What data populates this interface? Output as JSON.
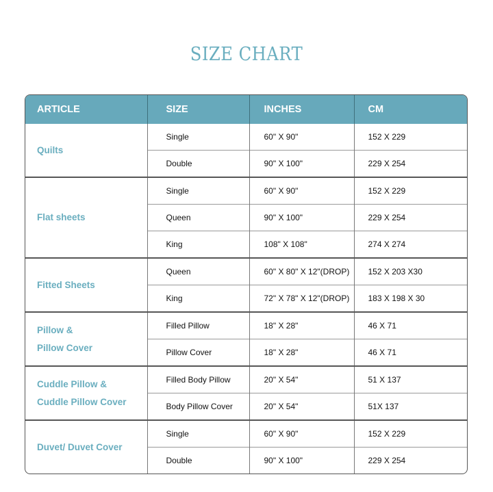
{
  "title": "SIZE CHART",
  "headers": [
    "ARTICLE",
    "SIZE",
    "INCHES",
    "CM"
  ],
  "colors": {
    "accent": "#67a9bb",
    "article_text": "#6aaebf"
  },
  "groups": [
    {
      "article": [
        "Quilts"
      ],
      "rows": [
        {
          "size": "Single",
          "inches": "60\" X 90\"",
          "cm": "152 X 229"
        },
        {
          "size": "Double",
          "inches": "90\" X 100\"",
          "cm": "229 X 254"
        }
      ]
    },
    {
      "article": [
        "Flat sheets"
      ],
      "rows": [
        {
          "size": "Single",
          "inches": "60\" X 90\"",
          "cm": "152 X 229"
        },
        {
          "size": "Queen",
          "inches": "90\" X 100\"",
          "cm": "229 X 254"
        },
        {
          "size": "King",
          "inches": "108\" X 108\"",
          "cm": "274 X 274"
        }
      ]
    },
    {
      "article": [
        "Fitted Sheets"
      ],
      "rows": [
        {
          "size": "Queen",
          "inches": "60\" X 80\" X 12\"(DROP)",
          "cm": "152 X 203 X30"
        },
        {
          "size": "King",
          "inches": "72\" X 78\" X 12\"(DROP)",
          "cm": "183 X 198 X 30"
        }
      ]
    },
    {
      "article": [
        "Pillow &",
        "Pillow Cover"
      ],
      "rows": [
        {
          "size": "Filled Pillow",
          "inches": "18\" X 28\"",
          "cm": "46 X 71"
        },
        {
          "size": "Pillow Cover",
          "inches": "18\" X 28\"",
          "cm": "46 X 71"
        }
      ]
    },
    {
      "article": [
        "Cuddle Pillow &",
        "Cuddle Pillow Cover"
      ],
      "rows": [
        {
          "size": "Filled Body Pillow",
          "inches": "20\" X 54\"",
          "cm": "51 X 137"
        },
        {
          "size": "Body Pillow Cover",
          "inches": "20\" X 54\"",
          "cm": "51X 137"
        }
      ]
    },
    {
      "article": [
        "Duvet/ Duvet Cover"
      ],
      "rows": [
        {
          "size": "Single",
          "inches": "60\" X 90\"",
          "cm": "152 X 229"
        },
        {
          "size": "Double",
          "inches": "90\" X 100\"",
          "cm": "229 X 254"
        }
      ]
    }
  ]
}
